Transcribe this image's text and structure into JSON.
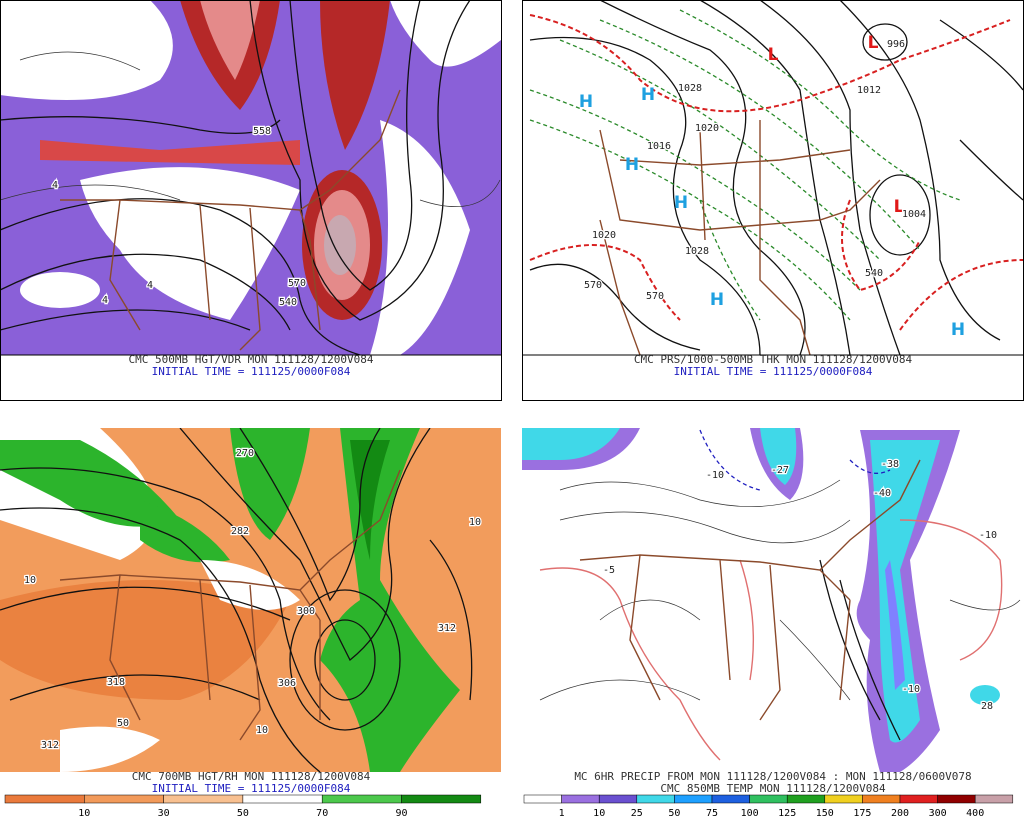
{
  "panels": [
    {
      "caption": "CMC 500MB HGT/VDR MON 111128/1200V084",
      "subcaption": "INITIAL TIME = 111125/0000F084",
      "labels": [
        "558",
        "570",
        "540",
        "4",
        "4",
        "4"
      ]
    },
    {
      "caption": "CMC PRS/1000-500MB THK MON 111128/1200V084",
      "subcaption": "INITIAL TIME = 111125/0000F084",
      "labels": [
        "H",
        "H",
        "H",
        "H",
        "H",
        "H",
        "L",
        "L",
        "L",
        "1028",
        "1020",
        "1016",
        "1028",
        "1012",
        "1004",
        "996",
        "570",
        "570",
        "540",
        "1020"
      ]
    },
    {
      "caption": "CMC 700MB HGT/RH MON 111128/1200V084",
      "subcaption": "INITIAL TIME = 111125/0000F084",
      "labels": [
        "270",
        "282",
        "312",
        "300",
        "306",
        "318",
        "312",
        "10",
        "10",
        "10",
        "50"
      ],
      "colorbar": [
        "10",
        "30",
        "50",
        "70",
        "90"
      ]
    },
    {
      "caption": "MC 6HR PRECIP FROM MON 111128/1200V084 : MON 111128/0600V078",
      "subcaption": "CMC 850MB TEMP MON 111128/1200V084",
      "labels": [
        "-10",
        "-27",
        "-38",
        "-40",
        "-10",
        "-5",
        "-10",
        "28"
      ],
      "colorbar": [
        "1",
        "10",
        "25",
        "50",
        "75",
        "100",
        "125",
        "150",
        "175",
        "200",
        "300",
        "400"
      ]
    }
  ]
}
